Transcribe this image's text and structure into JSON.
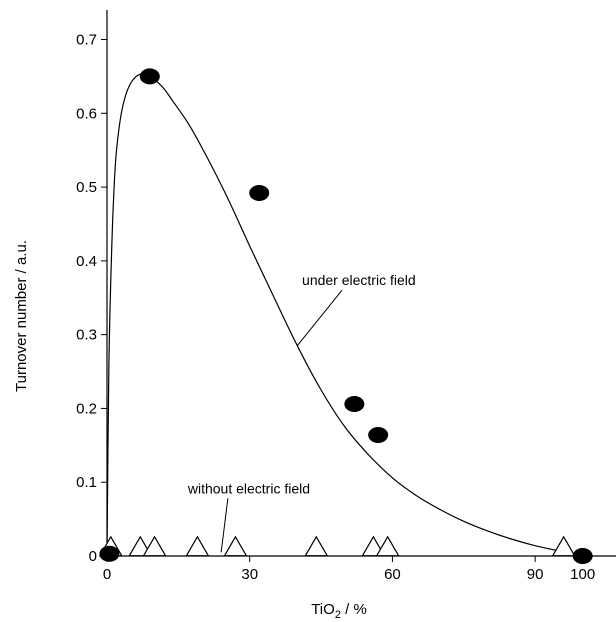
{
  "chart_data": {
    "type": "scatter",
    "xlabel": "TiO",
    "xlabel_subscript": "2",
    "xlabel_suffix": " / %",
    "ylabel": "Turnover number / a.u.",
    "xlim": [
      0,
      107
    ],
    "ylim": [
      0,
      0.74
    ],
    "x_ticks": [
      0,
      30,
      60,
      90,
      100
    ],
    "x_tick_labels": [
      "0",
      "30",
      "60",
      "90",
      "100"
    ],
    "y_ticks": [
      0,
      0.1,
      0.2,
      0.3,
      0.4,
      0.5,
      0.6,
      0.7
    ],
    "y_tick_labels": [
      "0",
      "0.1",
      "0.2",
      "0.3",
      "0.4",
      "0.5",
      "0.6",
      "0.7"
    ],
    "grid": false,
    "series": [
      {
        "name": "under electric field",
        "marker": "filled-circle",
        "color": "#000000",
        "x": [
          0.5,
          9,
          32,
          52,
          57,
          100
        ],
        "y": [
          0.003,
          0.65,
          0.492,
          0.206,
          0.164,
          0.0
        ]
      },
      {
        "name": "without electric field",
        "marker": "open-triangle",
        "color": "#000000",
        "x": [
          0.8,
          7,
          10,
          19,
          27,
          44,
          56,
          59,
          96
        ],
        "y": [
          0.003,
          0.003,
          0.003,
          0.003,
          0.003,
          0.003,
          0.003,
          0.003,
          0.003
        ]
      }
    ],
    "fit_curve": {
      "x": [
        0,
        0.4,
        1,
        1.5,
        2,
        3,
        4,
        5,
        6,
        7,
        8,
        9,
        10,
        12,
        14,
        17,
        20,
        25,
        30,
        35,
        40,
        45,
        50,
        55,
        60,
        65,
        70,
        75,
        80,
        85,
        90,
        95,
        100
      ],
      "y": [
        0.0,
        0.26,
        0.42,
        0.5,
        0.55,
        0.6,
        0.626,
        0.641,
        0.649,
        0.653,
        0.653,
        0.651,
        0.646,
        0.633,
        0.615,
        0.587,
        0.553,
        0.49,
        0.42,
        0.352,
        0.285,
        0.225,
        0.175,
        0.137,
        0.106,
        0.082,
        0.063,
        0.047,
        0.034,
        0.023,
        0.014,
        0.007,
        0.002
      ]
    },
    "annotations": [
      {
        "text": "under electric field",
        "x_text": 41,
        "y_text": 0.367,
        "x_point": 40,
        "y_point": 0.285
      },
      {
        "text": "without  electric field",
        "x_text": 17,
        "y_text": 0.085,
        "x_point": 24,
        "y_point": 0.005
      }
    ]
  }
}
